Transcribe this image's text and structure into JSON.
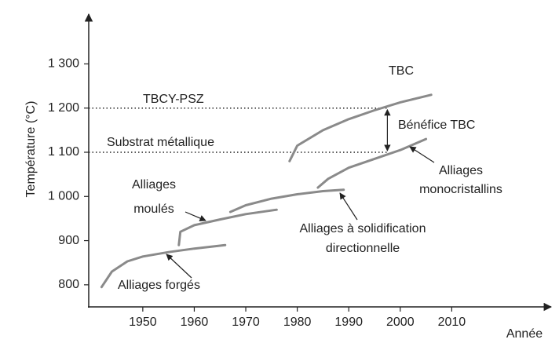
{
  "chart_data": {
    "type": "line",
    "y_label": "Température (°C)",
    "x_label": "Année",
    "xlim": [
      1939.5,
      2029
    ],
    "ylim": [
      750,
      1418
    ],
    "xticks": [
      1950,
      1960,
      1970,
      1980,
      1990,
      2000,
      2010
    ],
    "yticks": [
      800,
      900,
      {
        "value": 1000,
        "label": "1 000"
      },
      {
        "value": 1100,
        "label": "1 100"
      },
      {
        "value": 1200,
        "label": "1 200"
      },
      {
        "value": 1300,
        "label": "1 300"
      }
    ],
    "series": [
      {
        "color": "#8a8a8a",
        "x": [
          1942,
          1944,
          1947,
          1950,
          1955,
          1960,
          1966
        ],
        "values": [
          795,
          830,
          853,
          864,
          874,
          882,
          890
        ]
      },
      {
        "color": "#8a8a8a",
        "x": [
          1957,
          1957.3,
          1960,
          1965,
          1970,
          1976
        ],
        "values": [
          890,
          920,
          935,
          948,
          960,
          970
        ]
      },
      {
        "color": "#8a8a8a",
        "x": [
          1967,
          1970,
          1975,
          1980,
          1985,
          1989
        ],
        "values": [
          965,
          980,
          995,
          1005,
          1012,
          1015
        ]
      },
      {
        "color": "#8a8a8a",
        "x": [
          1984,
          1986,
          1990,
          1995,
          2000,
          2005
        ],
        "values": [
          1020,
          1040,
          1065,
          1085,
          1105,
          1130
        ]
      },
      {
        "color": "#8a8a8a",
        "x": [
          1978.5,
          1980,
          1985,
          1990,
          1995,
          2000,
          2006
        ],
        "values": [
          1080,
          1115,
          1150,
          1175,
          1195,
          1213,
          1230
        ]
      }
    ],
    "reference_lines": [
      {
        "value": 1200,
        "end": 1997.5
      },
      {
        "value": 1100,
        "end": 1997.5
      }
    ],
    "benefit": {
      "x": 1997.5,
      "from": 1100,
      "to": 1200
    },
    "annotations": [
      "TBC",
      "TBCY-PSZ",
      "Bénéfice TBC",
      "Substrat métallique",
      "Alliages",
      "monocristallins",
      "Alliages",
      "moulés",
      "Alliages à solidification",
      "directionnelle",
      "Alliages forgés"
    ]
  }
}
